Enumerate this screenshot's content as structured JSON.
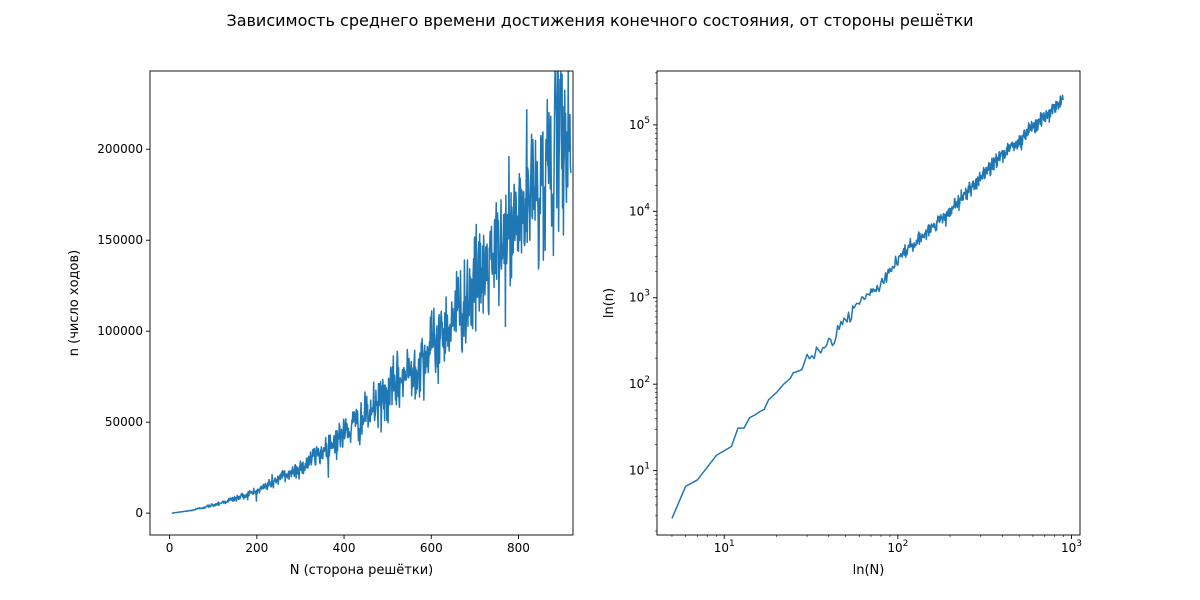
{
  "figure": {
    "suptitle": "Зависимость среднего времени достижения конечного состояния, от стороны решётки"
  },
  "chart_data": [
    {
      "type": "line",
      "xlabel": "N (сторона решётки)",
      "ylabel": "n (число ходов)",
      "xscale": "linear",
      "yscale": "linear",
      "xlim": [
        -45,
        925
      ],
      "ylim": [
        -12000,
        243000
      ],
      "xticks": [
        0,
        200,
        400,
        600,
        800
      ],
      "yticks": [
        0,
        50000,
        100000,
        150000,
        200000
      ],
      "series": [
        {
          "color": "#1f77b4",
          "x": [
            5,
            50,
            100,
            150,
            200,
            250,
            300,
            350,
            400,
            450,
            500,
            550,
            600,
            650,
            700,
            750,
            800,
            850,
            900,
            920
          ],
          "y": [
            3,
            1500,
            4500,
            8000,
            12000,
            19000,
            25000,
            34000,
            44000,
            53000,
            65000,
            78000,
            90000,
            108000,
            125000,
            142000,
            162000,
            182000,
            205000,
            210000
          ]
        }
      ]
    },
    {
      "type": "line",
      "xlabel": "ln(N)",
      "ylabel": "ln(n)",
      "xscale": "log",
      "yscale": "log",
      "xlim": [
        4.1,
        1120
      ],
      "ylim": [
        1.8,
        420000
      ],
      "xticks": [
        "10^1",
        "10^2",
        "10^3"
      ],
      "yticks": [
        "10^1",
        "10^2",
        "10^3",
        "10^4",
        "10^5"
      ],
      "series": [
        {
          "color": "#1f77b4",
          "x": [
            5,
            6,
            7,
            8,
            9,
            10,
            11,
            12,
            13,
            14,
            15,
            16,
            17,
            18,
            20,
            22,
            25,
            30,
            40,
            50,
            60,
            80,
            100,
            150,
            200,
            300,
            400,
            500,
            600,
            700,
            800,
            900
          ],
          "y": [
            2.8,
            6.6,
            7.8,
            11,
            15,
            17,
            19,
            31,
            31,
            41,
            44,
            48,
            51,
            66,
            80,
            100,
            125,
            200,
            300,
            550,
            900,
            1400,
            2800,
            6000,
            10000,
            25000,
            48000,
            63000,
            95000,
            120000,
            160000,
            210000
          ]
        }
      ]
    }
  ]
}
